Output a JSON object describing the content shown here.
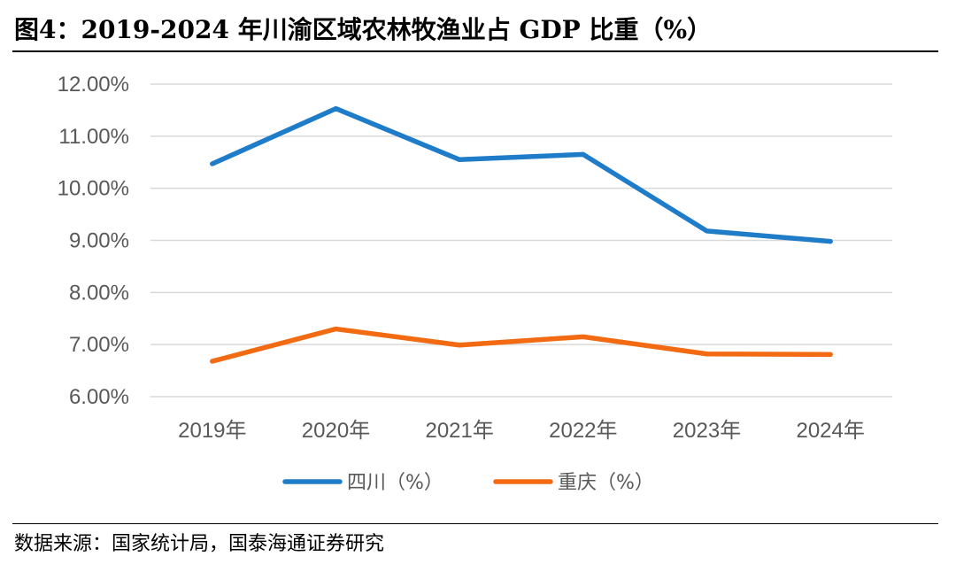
{
  "figure": {
    "title": "图4：2019-2024 年川渝区域农林牧渔业占 GDP 比重（%）",
    "source": "数据来源：国家统计局，国泰海通证券研究"
  },
  "chart_data": {
    "type": "line",
    "title": "图4：2019-2024 年川渝区域农林牧渔业占 GDP 比重（%）",
    "xlabel": "",
    "ylabel": "",
    "categories": [
      "2019年",
      "2020年",
      "2021年",
      "2022年",
      "2023年",
      "2024年"
    ],
    "yticks": [
      "6.00%",
      "7.00%",
      "8.00%",
      "9.00%",
      "10.00%",
      "11.00%",
      "12.00%"
    ],
    "ylim": [
      6,
      12
    ],
    "grid": true,
    "legend_position": "bottom",
    "series": [
      {
        "name": "四川（%）",
        "color": "#1F7CC8",
        "values": [
          10.47,
          11.53,
          10.55,
          10.65,
          9.18,
          8.98
        ]
      },
      {
        "name": "重庆（%）",
        "color": "#F26B12",
        "values": [
          6.68,
          7.3,
          6.99,
          7.15,
          6.82,
          6.81
        ]
      }
    ]
  }
}
